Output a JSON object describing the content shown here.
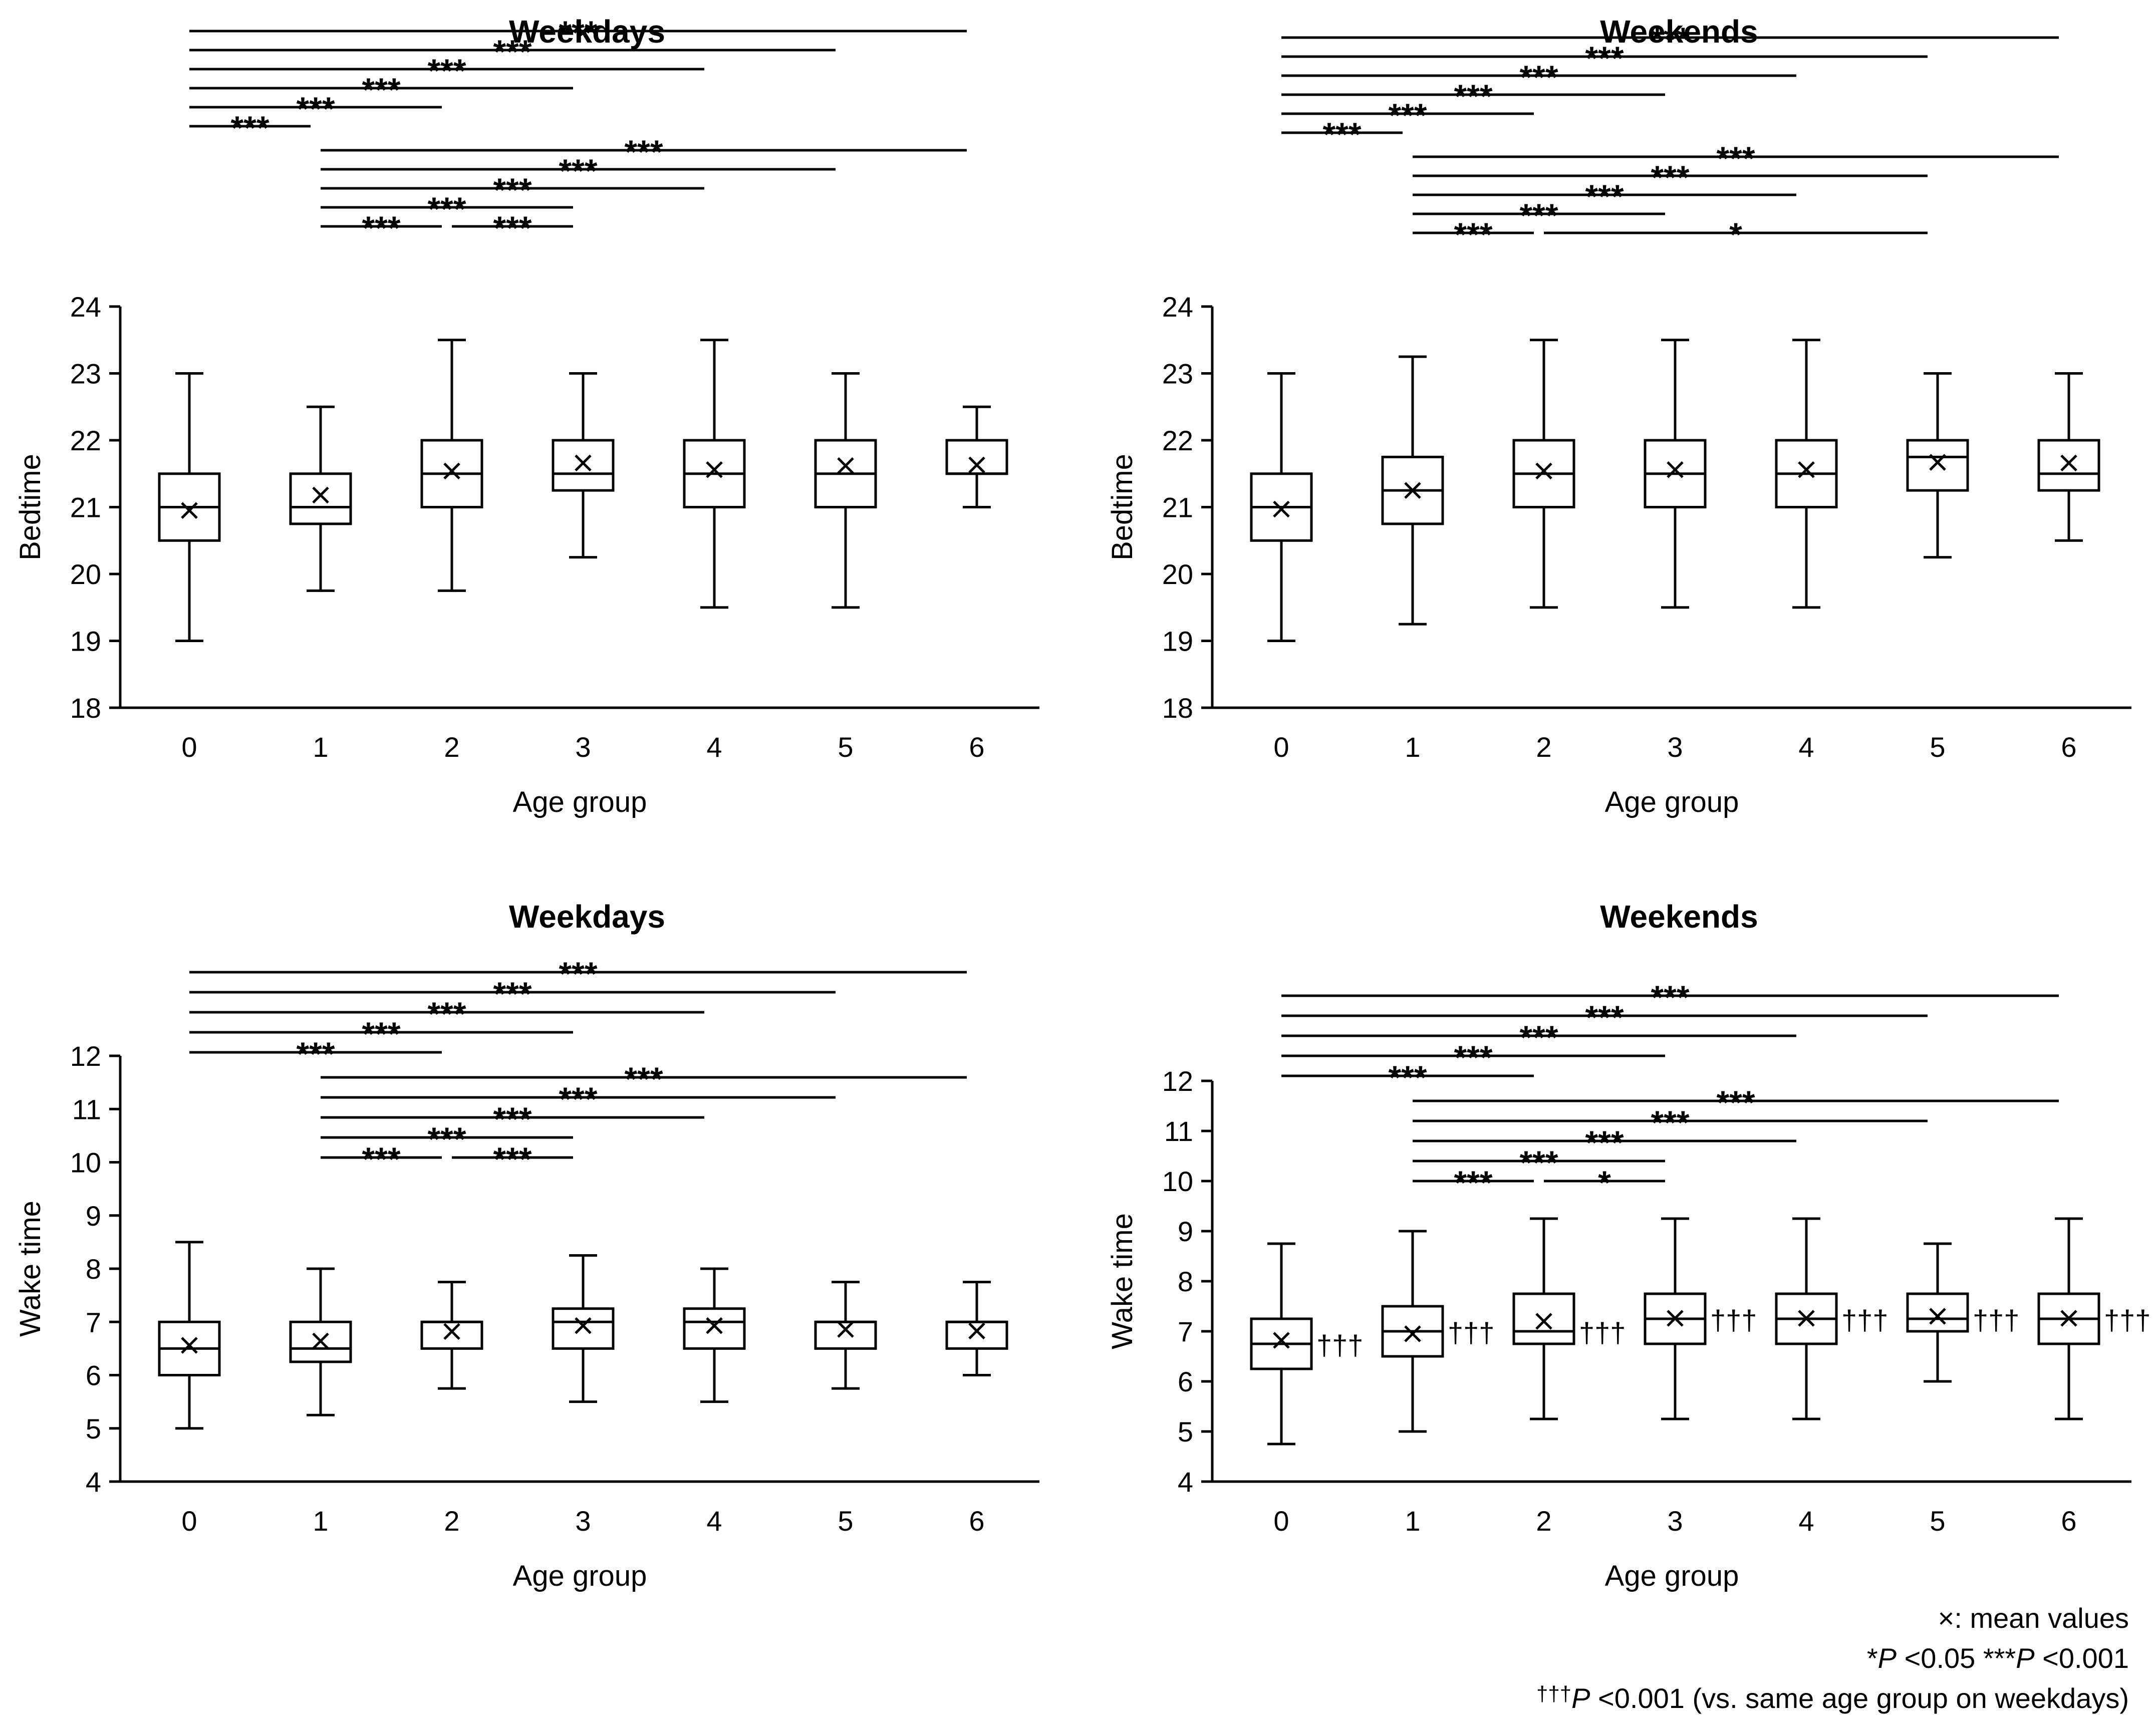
{
  "legend": {
    "mean_symbol": "×",
    "mean_text": ": mean values",
    "star1": "*",
    "star3": "***",
    "p_letter": "P",
    "p05": " <0.05 ",
    "p001": " <0.001",
    "dagger": "†††",
    "dagger_p": " <0.001  (vs. same age group on weekdays)"
  },
  "chart_data": [
    {
      "id": "bedtime-weekdays",
      "type": "box",
      "title": "Weekdays",
      "xlabel": "Age group",
      "ylabel": "Bedtime",
      "categories": [
        "0",
        "1",
        "2",
        "3",
        "4",
        "5",
        "6"
      ],
      "ylim": [
        18,
        24
      ],
      "yticks": [
        18,
        19,
        20,
        21,
        22,
        23,
        24
      ],
      "boxes": [
        {
          "min": 19,
          "q1": 20.5,
          "median": 21,
          "q3": 21.5,
          "max": 23,
          "mean": 20.95
        },
        {
          "min": 19.75,
          "q1": 20.75,
          "median": 21,
          "q3": 21.5,
          "max": 22.5,
          "mean": 21.18
        },
        {
          "min": 19.75,
          "q1": 21,
          "median": 21.5,
          "q3": 22,
          "max": 23.5,
          "mean": 21.54
        },
        {
          "min": 20.25,
          "q1": 21.25,
          "median": 21.5,
          "q3": 22,
          "max": 23,
          "mean": 21.66
        },
        {
          "min": 19.5,
          "q1": 21,
          "median": 21.5,
          "q3": 22,
          "max": 23.5,
          "mean": 21.56
        },
        {
          "min": 19.5,
          "q1": 21,
          "median": 21.5,
          "q3": 22,
          "max": 23,
          "mean": 21.62
        },
        {
          "min": 21,
          "q1": 21.5,
          "median": 21.5,
          "q3": 22,
          "max": 22.5,
          "mean": 21.63
        }
      ],
      "comparisons": [
        {
          "from": 0,
          "to": 6,
          "label": "***"
        },
        {
          "from": 0,
          "to": 5,
          "label": "***"
        },
        {
          "from": 0,
          "to": 4,
          "label": "***"
        },
        {
          "from": 0,
          "to": 3,
          "label": "***"
        },
        {
          "from": 0,
          "to": 2,
          "label": "***"
        },
        {
          "from": 0,
          "to": 1,
          "label": "***"
        },
        {
          "from": 1,
          "to": 6,
          "label": "***"
        },
        {
          "from": 1,
          "to": 5,
          "label": "***"
        },
        {
          "from": 1,
          "to": 4,
          "label": "***"
        },
        {
          "from": 1,
          "to": 3,
          "label": "***"
        },
        {
          "from": 1,
          "to": 2,
          "label": "***"
        },
        {
          "from": 2,
          "to": 3,
          "label": "***"
        }
      ],
      "daggers": []
    },
    {
      "id": "bedtime-weekends",
      "type": "box",
      "title": "Weekends",
      "xlabel": "Age group",
      "ylabel": "Bedtime",
      "categories": [
        "0",
        "1",
        "2",
        "3",
        "4",
        "5",
        "6"
      ],
      "ylim": [
        18,
        24
      ],
      "yticks": [
        18,
        19,
        20,
        21,
        22,
        23,
        24
      ],
      "boxes": [
        {
          "min": 19,
          "q1": 20.5,
          "median": 21,
          "q3": 21.5,
          "max": 23,
          "mean": 20.97
        },
        {
          "min": 19.25,
          "q1": 20.75,
          "median": 21.25,
          "q3": 21.75,
          "max": 23.25,
          "mean": 21.25
        },
        {
          "min": 19.5,
          "q1": 21,
          "median": 21.5,
          "q3": 22,
          "max": 23.5,
          "mean": 21.54
        },
        {
          "min": 19.5,
          "q1": 21,
          "median": 21.5,
          "q3": 22,
          "max": 23.5,
          "mean": 21.56
        },
        {
          "min": 19.5,
          "q1": 21,
          "median": 21.5,
          "q3": 22,
          "max": 23.5,
          "mean": 21.56
        },
        {
          "min": 20.25,
          "q1": 21.25,
          "median": 21.75,
          "q3": 22,
          "max": 23,
          "mean": 21.67
        },
        {
          "min": 20.5,
          "q1": 21.25,
          "median": 21.5,
          "q3": 22,
          "max": 23,
          "mean": 21.66
        }
      ],
      "comparisons": [
        {
          "from": 0,
          "to": 6,
          "label": "***"
        },
        {
          "from": 0,
          "to": 5,
          "label": "***"
        },
        {
          "from": 0,
          "to": 4,
          "label": "***"
        },
        {
          "from": 0,
          "to": 3,
          "label": "***"
        },
        {
          "from": 0,
          "to": 2,
          "label": "***"
        },
        {
          "from": 0,
          "to": 1,
          "label": "***"
        },
        {
          "from": 1,
          "to": 6,
          "label": "***"
        },
        {
          "from": 1,
          "to": 5,
          "label": "***"
        },
        {
          "from": 1,
          "to": 4,
          "label": "***"
        },
        {
          "from": 1,
          "to": 3,
          "label": "***"
        },
        {
          "from": 1,
          "to": 2,
          "label": "***"
        },
        {
          "from": 2,
          "to": 5,
          "label": "*"
        }
      ],
      "daggers": []
    },
    {
      "id": "waketime-weekdays",
      "type": "box",
      "title": "Weekdays",
      "xlabel": "Age group",
      "ylabel": "Wake time",
      "categories": [
        "0",
        "1",
        "2",
        "3",
        "4",
        "5",
        "6"
      ],
      "ylim": [
        4,
        12
      ],
      "yticks": [
        4,
        5,
        6,
        7,
        8,
        9,
        10,
        11,
        12
      ],
      "boxes": [
        {
          "min": 5,
          "q1": 6,
          "median": 6.5,
          "q3": 7,
          "max": 8.5,
          "mean": 6.56
        },
        {
          "min": 5.25,
          "q1": 6.25,
          "median": 6.5,
          "q3": 7,
          "max": 8,
          "mean": 6.64
        },
        {
          "min": 5.75,
          "q1": 6.5,
          "median": 7,
          "q3": 7,
          "max": 7.75,
          "mean": 6.82
        },
        {
          "min": 5.5,
          "q1": 6.5,
          "median": 7,
          "q3": 7.25,
          "max": 8.25,
          "mean": 6.93
        },
        {
          "min": 5.5,
          "q1": 6.5,
          "median": 7,
          "q3": 7.25,
          "max": 8,
          "mean": 6.93
        },
        {
          "min": 5.75,
          "q1": 6.5,
          "median": 7,
          "q3": 7,
          "max": 7.75,
          "mean": 6.86
        },
        {
          "min": 6,
          "q1": 6.5,
          "median": 7,
          "q3": 7,
          "max": 7.75,
          "mean": 6.83
        }
      ],
      "comparisons": [
        {
          "from": 0,
          "to": 6,
          "label": "***"
        },
        {
          "from": 0,
          "to": 5,
          "label": "***"
        },
        {
          "from": 0,
          "to": 4,
          "label": "***"
        },
        {
          "from": 0,
          "to": 3,
          "label": "***"
        },
        {
          "from": 0,
          "to": 2,
          "label": "***"
        },
        {
          "from": 1,
          "to": 6,
          "label": "***"
        },
        {
          "from": 1,
          "to": 5,
          "label": "***"
        },
        {
          "from": 1,
          "to": 4,
          "label": "***"
        },
        {
          "from": 1,
          "to": 3,
          "label": "***"
        },
        {
          "from": 1,
          "to": 2,
          "label": "***"
        },
        {
          "from": 2,
          "to": 3,
          "label": "***"
        }
      ],
      "daggers": []
    },
    {
      "id": "waketime-weekends",
      "type": "box",
      "title": "Weekends",
      "xlabel": "Age group",
      "ylabel": "Wake time",
      "categories": [
        "0",
        "1",
        "2",
        "3",
        "4",
        "5",
        "6"
      ],
      "ylim": [
        4,
        12
      ],
      "yticks": [
        4,
        5,
        6,
        7,
        8,
        9,
        10,
        11,
        12
      ],
      "boxes": [
        {
          "min": 4.75,
          "q1": 6.25,
          "median": 6.75,
          "q3": 7.25,
          "max": 8.75,
          "mean": 6.82
        },
        {
          "min": 5,
          "q1": 6.5,
          "median": 7,
          "q3": 7.5,
          "max": 9,
          "mean": 6.95
        },
        {
          "min": 5.25,
          "q1": 6.75,
          "median": 7,
          "q3": 7.75,
          "max": 9.25,
          "mean": 7.2
        },
        {
          "min": 5.25,
          "q1": 6.75,
          "median": 7.25,
          "q3": 7.75,
          "max": 9.25,
          "mean": 7.26
        },
        {
          "min": 5.25,
          "q1": 6.75,
          "median": 7.25,
          "q3": 7.75,
          "max": 9.25,
          "mean": 7.26
        },
        {
          "min": 6,
          "q1": 7,
          "median": 7.25,
          "q3": 7.75,
          "max": 8.75,
          "mean": 7.3
        },
        {
          "min": 5.25,
          "q1": 6.75,
          "median": 7.25,
          "q3": 7.75,
          "max": 9.25,
          "mean": 7.26
        }
      ],
      "comparisons": [
        {
          "from": 0,
          "to": 6,
          "label": "***"
        },
        {
          "from": 0,
          "to": 5,
          "label": "***"
        },
        {
          "from": 0,
          "to": 4,
          "label": "***"
        },
        {
          "from": 0,
          "to": 3,
          "label": "***"
        },
        {
          "from": 0,
          "to": 2,
          "label": "***"
        },
        {
          "from": 1,
          "to": 6,
          "label": "***"
        },
        {
          "from": 1,
          "to": 5,
          "label": "***"
        },
        {
          "from": 1,
          "to": 4,
          "label": "***"
        },
        {
          "from": 1,
          "to": 3,
          "label": "***"
        },
        {
          "from": 1,
          "to": 2,
          "label": "***"
        },
        {
          "from": 2,
          "to": 3,
          "label": "*"
        }
      ],
      "daggers": [
        "†††",
        "†††",
        "†††",
        "†††",
        "†††",
        "†††",
        "†††"
      ]
    }
  ]
}
